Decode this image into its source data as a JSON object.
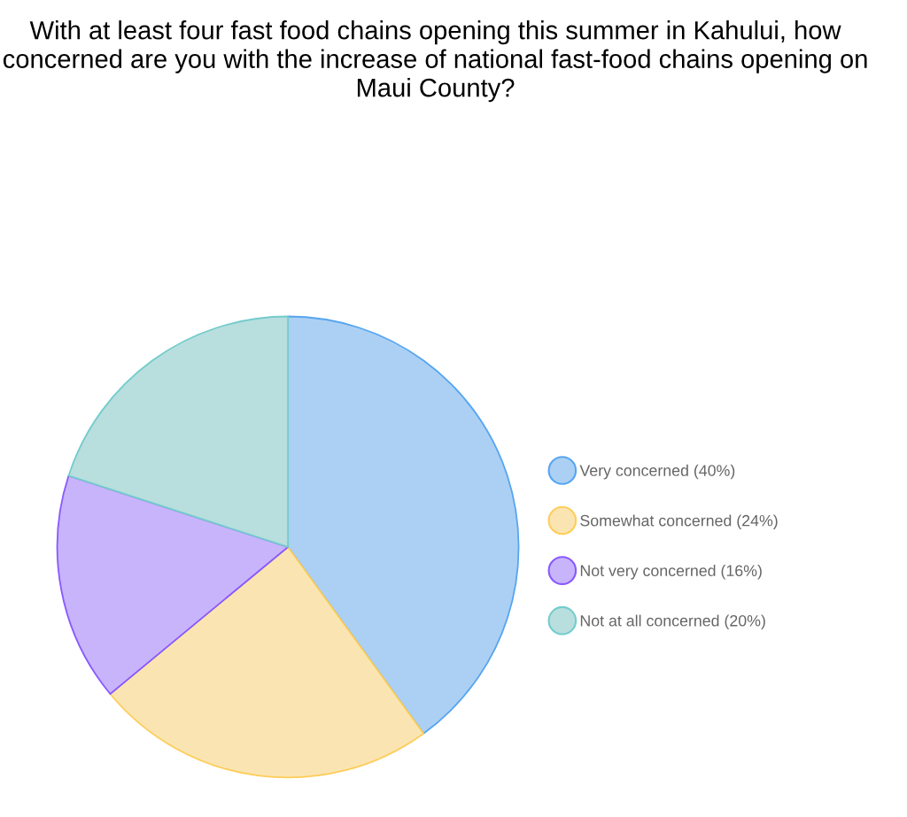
{
  "chart_data": {
    "type": "pie",
    "title": "With at least four fast food chains opening this summer in Kahului, how concerned are you with the increase of national fast-food chains opening on Maui County?",
    "categories": [
      "Very concerned (40%)",
      "Somewhat concerned (24%)",
      "Not very concerned (16%)",
      "Not at all concerned (20%)"
    ],
    "values": [
      40,
      24,
      16,
      20
    ],
    "colors": [
      "#acd0f3",
      "#fae5b2",
      "#c8b4fb",
      "#b8dede"
    ],
    "legend": "right"
  }
}
